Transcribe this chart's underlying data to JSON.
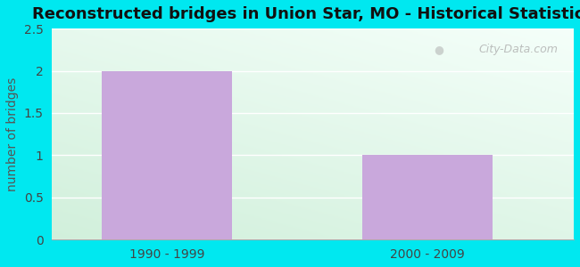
{
  "title": "Reconstructed bridges in Union Star, MO - Historical Statistics",
  "categories": [
    "1990 - 1999",
    "2000 - 2009"
  ],
  "values": [
    2,
    1
  ],
  "bar_color": "#c9a8dc",
  "ylabel": "number of bridges",
  "ylabel_color": "#555555",
  "ylim": [
    0,
    2.5
  ],
  "yticks": [
    0,
    0.5,
    1,
    1.5,
    2,
    2.5
  ],
  "title_fontsize": 13,
  "label_fontsize": 10,
  "tick_fontsize": 10,
  "outer_bg": "#00e8f0",
  "watermark": "City-Data.com",
  "grid_color": "#ddeedd",
  "bg_top": "#f5fffe",
  "bg_bottom": "#d0eed8"
}
